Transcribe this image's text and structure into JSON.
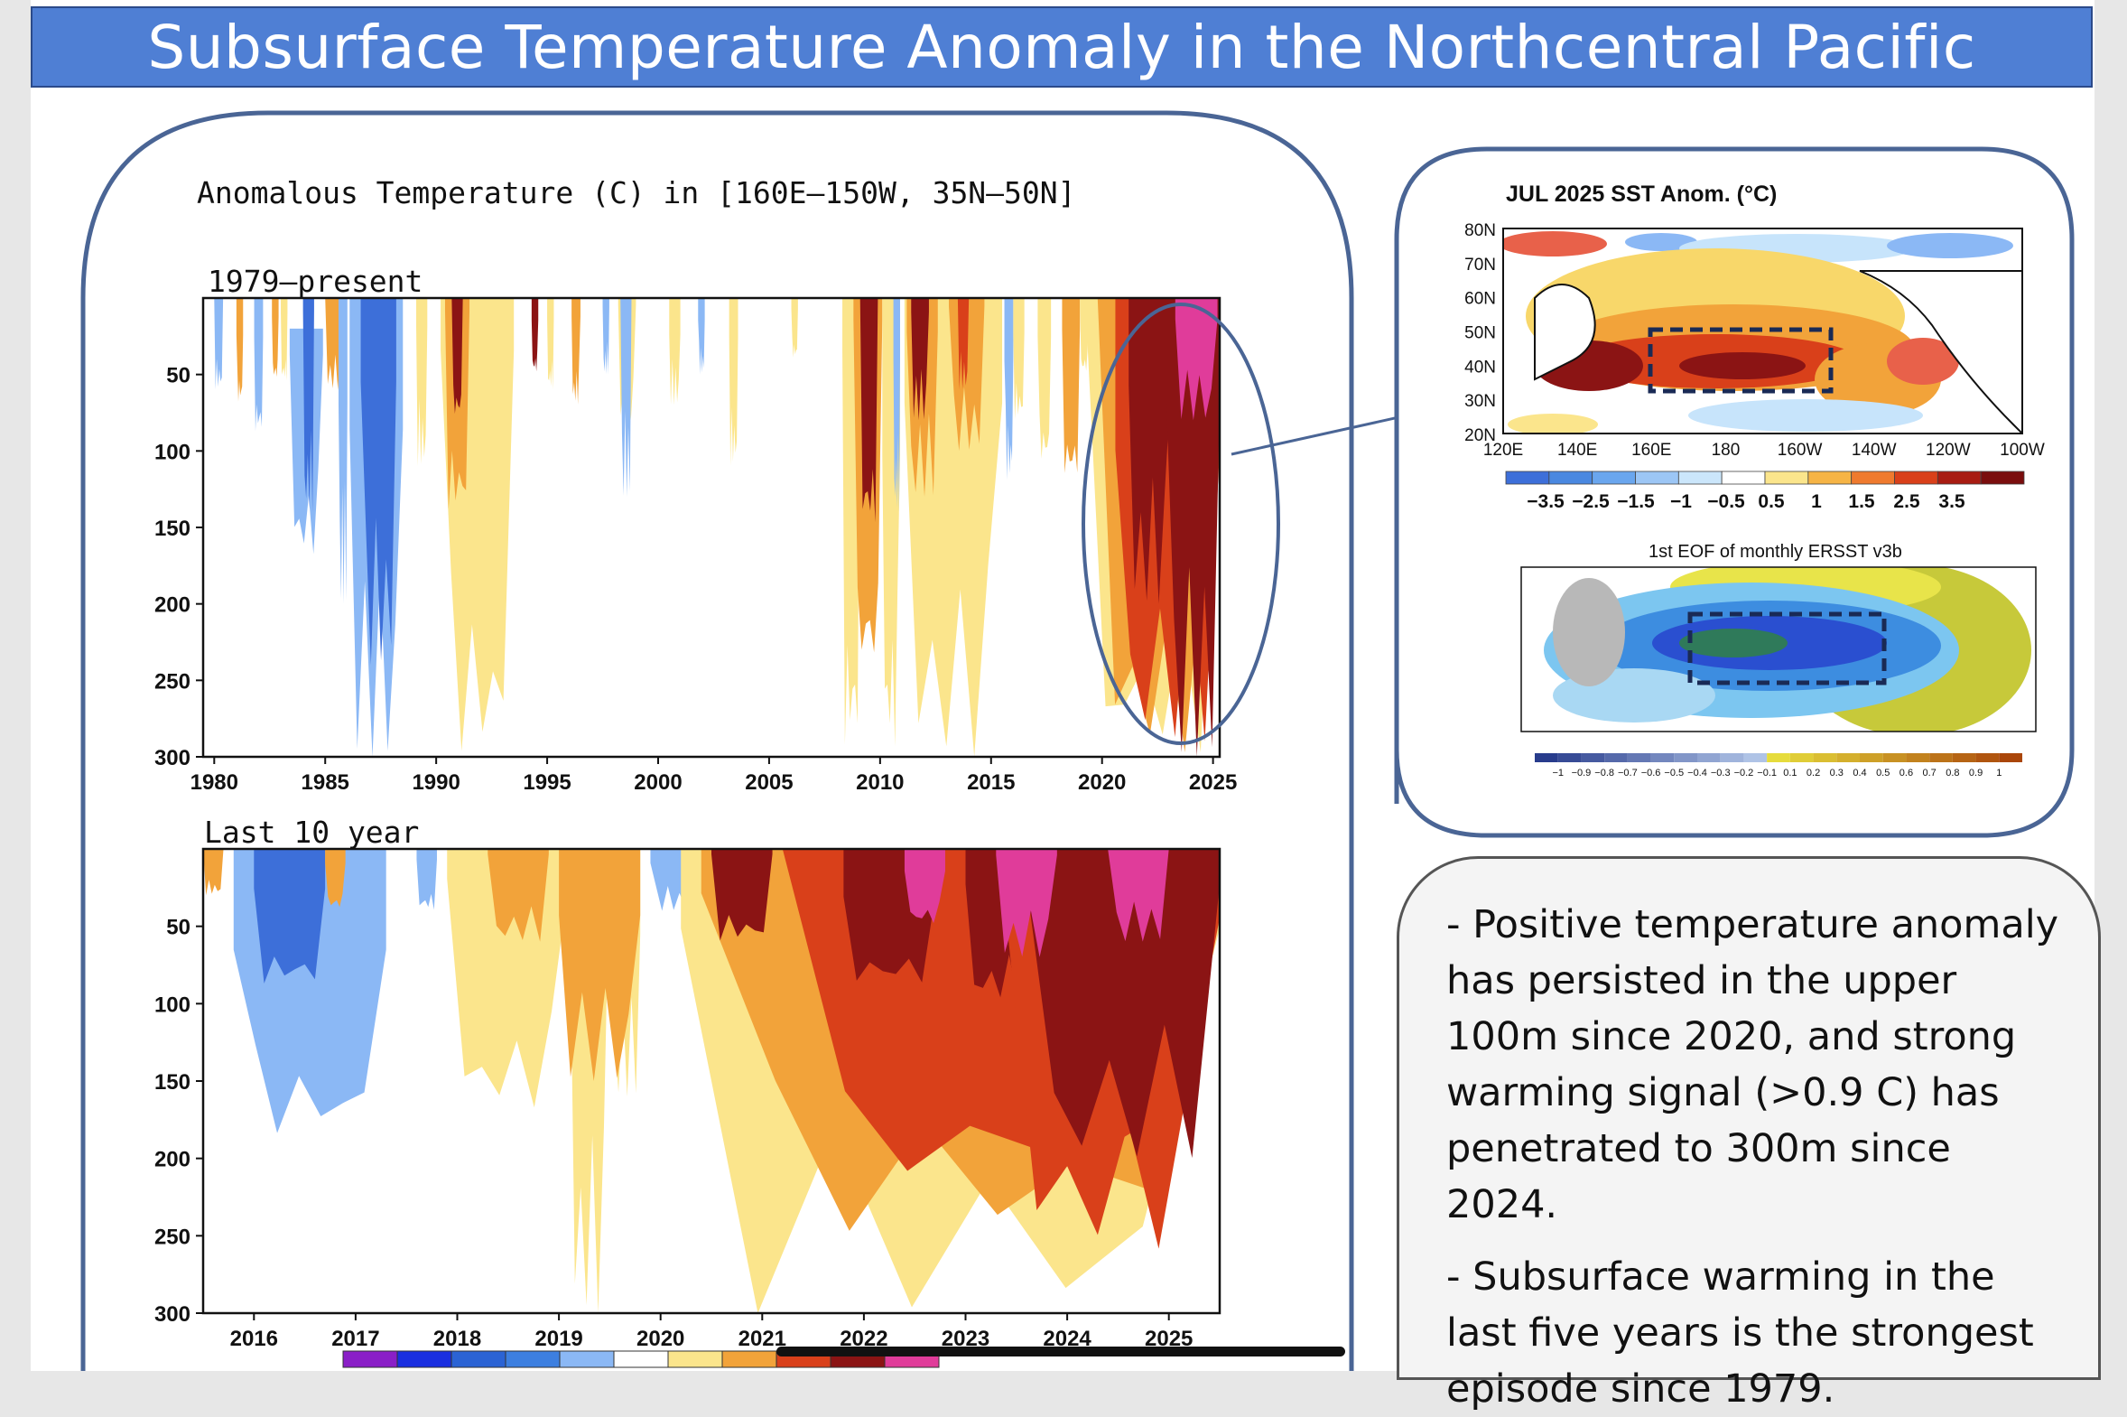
{
  "slide_title": "Subsurface Temperature Anomaly in the Northcentral Pacific",
  "main_panel": {
    "title": "Anomalous Temperature (C) in [160E–150W, 35N–50N]",
    "colors": [
      "#8a1fc7",
      "#1a2fe0",
      "#2b63d4",
      "#3d7fe0",
      "#8bb8f5",
      "#ffffff",
      "#fbe58c",
      "#f2a33a",
      "#d9401a",
      "#8b1414",
      "#e03c9a"
    ]
  },
  "chart_data": [
    {
      "type": "heatmap",
      "subtitle": "1979–present",
      "x_ticks": [
        "1980",
        "1985",
        "1990",
        "1995",
        "2000",
        "2005",
        "2010",
        "2015",
        "2020",
        "2025"
      ],
      "xlim": [
        1979.5,
        2025.3
      ],
      "y_ticks": [
        "50",
        "100",
        "150",
        "200",
        "250",
        "300"
      ],
      "ylim": [
        0,
        300
      ],
      "y_reversed": true,
      "bands": [
        {
          "x": 1980.0,
          "w": 0.4,
          "top": 0,
          "bottom": 60,
          "level": "l-blue"
        },
        {
          "x": 1981.0,
          "w": 0.3,
          "top": 0,
          "bottom": 70,
          "level": "orange"
        },
        {
          "x": 1981.8,
          "w": 0.4,
          "top": 0,
          "bottom": 90,
          "level": "l-blue"
        },
        {
          "x": 1982.6,
          "w": 0.3,
          "top": 0,
          "bottom": 55,
          "level": "orange"
        },
        {
          "x": 1983.0,
          "w": 0.3,
          "top": 0,
          "bottom": 55,
          "level": "yellow"
        },
        {
          "x": 1983.4,
          "w": 1.5,
          "top": 20,
          "bottom": 170,
          "level": "l-blue"
        },
        {
          "x": 1984.0,
          "w": 0.5,
          "top": 0,
          "bottom": 140,
          "level": "m-blue"
        },
        {
          "x": 1985.0,
          "w": 0.8,
          "top": 0,
          "bottom": 60,
          "level": "orange"
        },
        {
          "x": 1985.6,
          "w": 0.4,
          "top": 0,
          "bottom": 200,
          "level": "l-blue"
        },
        {
          "x": 1986.1,
          "w": 2.4,
          "top": 0,
          "bottom": 300,
          "level": "l-blue"
        },
        {
          "x": 1986.6,
          "w": 1.6,
          "top": 0,
          "bottom": 240,
          "level": "m-blue"
        },
        {
          "x": 1989.1,
          "w": 0.5,
          "top": 0,
          "bottom": 110,
          "level": "yellow"
        },
        {
          "x": 1990.2,
          "w": 3.3,
          "top": 0,
          "bottom": 300,
          "level": "yellow"
        },
        {
          "x": 1990.4,
          "w": 1.1,
          "top": 0,
          "bottom": 140,
          "level": "orange"
        },
        {
          "x": 1990.7,
          "w": 0.5,
          "top": 0,
          "bottom": 80,
          "level": "d-red"
        },
        {
          "x": 1992.7,
          "w": 0.5,
          "top": 0,
          "bottom": 60,
          "level": "yellow"
        },
        {
          "x": 1994.3,
          "w": 0.3,
          "top": 0,
          "bottom": 50,
          "level": "d-red"
        },
        {
          "x": 1995.0,
          "w": 0.3,
          "top": 0,
          "bottom": 60,
          "level": "yellow"
        },
        {
          "x": 1996.1,
          "w": 0.4,
          "top": 0,
          "bottom": 70,
          "level": "orange"
        },
        {
          "x": 1997.5,
          "w": 0.3,
          "top": 0,
          "bottom": 50,
          "level": "l-blue"
        },
        {
          "x": 1998.2,
          "w": 0.8,
          "top": 0,
          "bottom": 80,
          "level": "yellow"
        },
        {
          "x": 1998.3,
          "w": 0.5,
          "top": 0,
          "bottom": 130,
          "level": "l-blue"
        },
        {
          "x": 2000.5,
          "w": 0.5,
          "top": 0,
          "bottom": 70,
          "level": "yellow"
        },
        {
          "x": 2001.8,
          "w": 0.3,
          "top": 0,
          "bottom": 50,
          "level": "l-blue"
        },
        {
          "x": 2003.2,
          "w": 0.4,
          "top": 0,
          "bottom": 110,
          "level": "yellow"
        },
        {
          "x": 2006.0,
          "w": 0.3,
          "top": 0,
          "bottom": 40,
          "level": "yellow"
        },
        {
          "x": 2008.3,
          "w": 0.8,
          "top": 0,
          "bottom": 300,
          "level": "yellow"
        },
        {
          "x": 2008.8,
          "w": 1.3,
          "top": 0,
          "bottom": 250,
          "level": "orange"
        },
        {
          "x": 2009.1,
          "w": 0.8,
          "top": 0,
          "bottom": 150,
          "level": "d-red"
        },
        {
          "x": 2010.1,
          "w": 0.8,
          "top": 0,
          "bottom": 300,
          "level": "yellow"
        },
        {
          "x": 2010.6,
          "w": 0.3,
          "top": 0,
          "bottom": 140,
          "level": "l-blue"
        },
        {
          "x": 2011.1,
          "w": 4.4,
          "top": 0,
          "bottom": 300,
          "level": "yellow"
        },
        {
          "x": 2011.2,
          "w": 1.4,
          "top": 0,
          "bottom": 130,
          "level": "orange"
        },
        {
          "x": 2011.4,
          "w": 0.8,
          "top": 0,
          "bottom": 80,
          "level": "d-red"
        },
        {
          "x": 2013.1,
          "w": 1.6,
          "top": 0,
          "bottom": 100,
          "level": "orange"
        },
        {
          "x": 2013.5,
          "w": 0.5,
          "top": 0,
          "bottom": 60,
          "level": "red"
        },
        {
          "x": 2015.6,
          "w": 0.4,
          "top": 0,
          "bottom": 120,
          "level": "l-blue"
        },
        {
          "x": 2016.0,
          "w": 0.5,
          "top": 0,
          "bottom": 80,
          "level": "yellow"
        },
        {
          "x": 2017.1,
          "w": 0.6,
          "top": 0,
          "bottom": 110,
          "level": "yellow"
        },
        {
          "x": 2018.2,
          "w": 0.8,
          "top": 0,
          "bottom": 120,
          "level": "orange"
        },
        {
          "x": 2019.0,
          "w": 0.4,
          "top": 0,
          "bottom": 50,
          "level": "yellow"
        },
        {
          "x": 2019.3,
          "w": 6.0,
          "top": 0,
          "bottom": 300,
          "level": "yellow"
        },
        {
          "x": 2019.8,
          "w": 5.5,
          "top": 0,
          "bottom": 300,
          "level": "orange"
        },
        {
          "x": 2020.6,
          "w": 4.7,
          "top": 0,
          "bottom": 290,
          "level": "red"
        },
        {
          "x": 2021.2,
          "w": 1.9,
          "top": 0,
          "bottom": 200,
          "level": "d-red"
        },
        {
          "x": 2022.9,
          "w": 2.4,
          "top": 0,
          "bottom": 300,
          "level": "d-red"
        },
        {
          "x": 2023.3,
          "w": 1.9,
          "top": 0,
          "bottom": 80,
          "level": "magenta"
        }
      ]
    },
    {
      "type": "heatmap",
      "subtitle": "Last 10 year",
      "x_ticks": [
        "2016",
        "2017",
        "2018",
        "2019",
        "2020",
        "2021",
        "2022",
        "2023",
        "2024",
        "2025"
      ],
      "xlim": [
        2015.5,
        2025.5
      ],
      "y_ticks": [
        "50",
        "100",
        "150",
        "200",
        "250",
        "300"
      ],
      "ylim": [
        0,
        300
      ],
      "y_reversed": true,
      "bands": [
        {
          "x": 2015.5,
          "w": 0.2,
          "top": 0,
          "bottom": 30,
          "level": "orange"
        },
        {
          "x": 2015.8,
          "w": 1.5,
          "top": 0,
          "bottom": 190,
          "level": "l-blue"
        },
        {
          "x": 2016.0,
          "w": 0.7,
          "top": 0,
          "bottom": 90,
          "level": "m-blue"
        },
        {
          "x": 2016.7,
          "w": 0.2,
          "top": 0,
          "bottom": 40,
          "level": "orange"
        },
        {
          "x": 2017.6,
          "w": 0.2,
          "top": 0,
          "bottom": 40,
          "level": "l-blue"
        },
        {
          "x": 2017.9,
          "w": 1.2,
          "top": 0,
          "bottom": 170,
          "level": "yellow"
        },
        {
          "x": 2018.3,
          "w": 0.6,
          "top": 0,
          "bottom": 60,
          "level": "orange"
        },
        {
          "x": 2019.1,
          "w": 0.4,
          "top": 0,
          "bottom": 300,
          "level": "yellow"
        },
        {
          "x": 2019.5,
          "w": 0.3,
          "top": 0,
          "bottom": 160,
          "level": "yellow"
        },
        {
          "x": 2019.0,
          "w": 0.8,
          "top": 0,
          "bottom": 150,
          "level": "orange"
        },
        {
          "x": 2019.9,
          "w": 0.4,
          "top": 0,
          "bottom": 40,
          "level": "l-blue"
        },
        {
          "x": 2020.2,
          "w": 5.3,
          "top": 0,
          "bottom": 300,
          "level": "yellow"
        },
        {
          "x": 2020.4,
          "w": 5.1,
          "top": 0,
          "bottom": 250,
          "level": "orange"
        },
        {
          "x": 2020.5,
          "w": 0.6,
          "top": 0,
          "bottom": 60,
          "level": "d-red"
        },
        {
          "x": 2021.2,
          "w": 4.3,
          "top": 0,
          "bottom": 220,
          "level": "red"
        },
        {
          "x": 2021.8,
          "w": 0.9,
          "top": 0,
          "bottom": 90,
          "level": "d-red"
        },
        {
          "x": 2022.4,
          "w": 0.4,
          "top": 0,
          "bottom": 50,
          "level": "magenta"
        },
        {
          "x": 2023.0,
          "w": 0.6,
          "top": 0,
          "bottom": 100,
          "level": "d-red"
        },
        {
          "x": 2023.4,
          "w": 2.1,
          "top": 0,
          "bottom": 260,
          "level": "red"
        },
        {
          "x": 2023.6,
          "w": 1.9,
          "top": 0,
          "bottom": 200,
          "level": "d-red"
        },
        {
          "x": 2023.3,
          "w": 0.6,
          "top": 0,
          "bottom": 70,
          "level": "magenta"
        },
        {
          "x": 2024.4,
          "w": 0.6,
          "top": 0,
          "bottom": 60,
          "level": "magenta"
        }
      ]
    },
    {
      "type": "heatmap",
      "title": "JUL 2025 SST Anom. (°C)",
      "x_ticks": [
        "120E",
        "140E",
        "160E",
        "180",
        "160W",
        "140W",
        "120W",
        "100W"
      ],
      "y_ticks": [
        "80N",
        "70N",
        "60N",
        "50N",
        "40N",
        "30N",
        "20N"
      ],
      "colorbar_labels": [
        "−3.5",
        "−2.5",
        "−1.5",
        "−1",
        "−0.5",
        "0.5",
        "1",
        "1.5",
        "2.5",
        "3.5"
      ]
    },
    {
      "type": "heatmap",
      "title": "1st EOF of monthly ERSST v3b",
      "colorbar_labels": [
        "−1",
        "−0.9",
        "−0.8",
        "−0.7",
        "−0.6",
        "−0.5",
        "−0.4",
        "−0.3",
        "−0.2",
        "−0.1",
        "0.1",
        "0.2",
        "0.3",
        "0.4",
        "0.5",
        "0.6",
        "0.7",
        "0.8",
        "0.9",
        "1"
      ]
    }
  ],
  "notes": {
    "bullet1": "-   Positive temperature anomaly has persisted in the upper 100m since 2020, and strong warming signal (>0.9 C) has penetrated to 300m since 2024.",
    "bullet2": "- Subsurface warming in the last five years is the strongest episode since 1979."
  }
}
